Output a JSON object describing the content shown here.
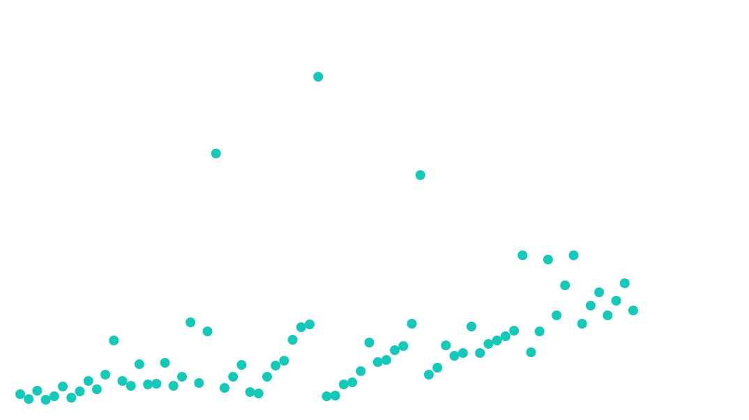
{
  "chart_data": {
    "type": "scatter",
    "color": "#14c9b8",
    "x": [
      0,
      1,
      2,
      3,
      4,
      5,
      6,
      7,
      8,
      9,
      10,
      11,
      12,
      13,
      14,
      15,
      16,
      17,
      18,
      19,
      20,
      21,
      22,
      23,
      24,
      25,
      26,
      27,
      28,
      29,
      30,
      31,
      32,
      33,
      34,
      35,
      36,
      37,
      38,
      39,
      40,
      41,
      42,
      43,
      44,
      45,
      46,
      47,
      48,
      49,
      50,
      51,
      52,
      53,
      54,
      55,
      56,
      57,
      58,
      59,
      60,
      61,
      62,
      63,
      64,
      65,
      66,
      67,
      68,
      69,
      70,
      71,
      72
    ],
    "values": [
      37,
      30,
      42,
      29,
      34,
      48,
      32,
      41,
      56,
      44,
      65,
      114,
      56,
      49,
      80,
      51,
      52,
      82,
      49,
      62,
      140,
      53,
      127,
      382,
      46,
      62,
      79,
      40,
      38,
      62,
      78,
      85,
      115,
      133,
      137,
      492,
      34,
      35,
      51,
      54,
      70,
      111,
      83,
      86,
      100,
      106,
      138,
      351,
      65,
      75,
      107,
      92,
      96,
      134,
      96,
      109,
      114,
      120,
      128,
      236,
      97,
      127,
      230,
      150,
      193,
      236,
      138,
      164,
      183,
      150,
      171,
      196,
      157
    ],
    "xlim": [
      -2.375,
      85.6
    ],
    "ylim": [
      0,
      602
    ]
  }
}
